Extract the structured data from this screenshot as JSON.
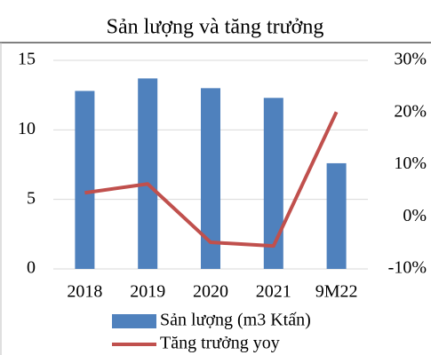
{
  "chart_data": {
    "type": "bar-line",
    "title": "Sản lượng và tăng trưởng",
    "categories": [
      "2018",
      "2019",
      "2020",
      "2021",
      "9M22"
    ],
    "series": [
      {
        "name": "Sản lượng (m3 Ktấn)",
        "color": "#4f81bd",
        "type": "bar",
        "values": [
          12.8,
          13.7,
          13.0,
          12.3,
          7.6
        ]
      },
      {
        "name": "Tăng trưởng yoy",
        "color": "#c0504d",
        "type": "line",
        "axis": "y2",
        "values": [
          4.6,
          6.3,
          -4.9,
          -5.6,
          20.1
        ]
      }
    ],
    "ylim": [
      0,
      15
    ],
    "yticks": [
      0,
      5,
      10,
      15
    ],
    "y2lim": [
      -10,
      30
    ],
    "y2ticks": [
      {
        "value": -10,
        "label": "-10%"
      },
      {
        "value": 0,
        "label": "0%"
      },
      {
        "value": 10,
        "label": "10%"
      },
      {
        "value": 20,
        "label": "20%"
      },
      {
        "value": 30,
        "label": "30%"
      }
    ],
    "grid": true
  }
}
